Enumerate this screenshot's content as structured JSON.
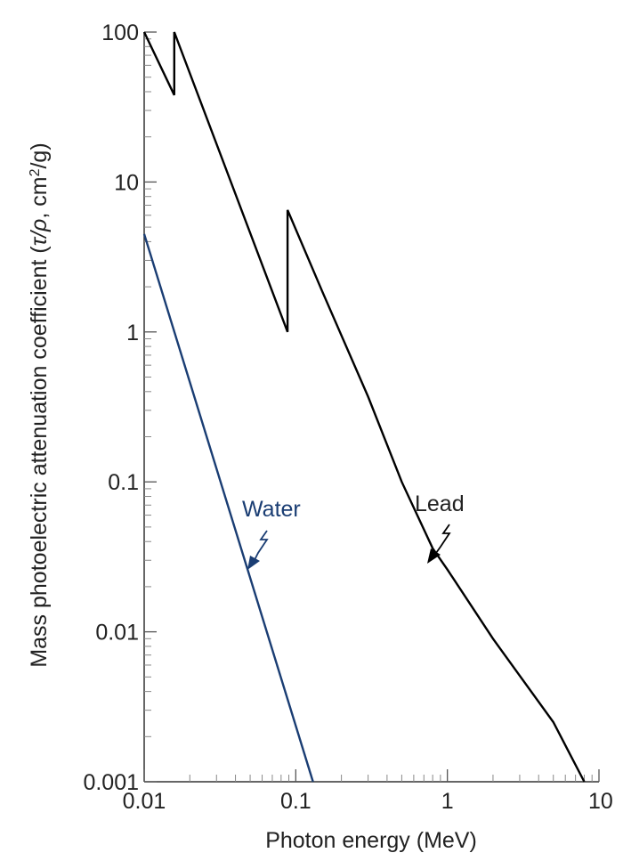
{
  "chart_data": {
    "type": "line",
    "xlabel": "Photon energy (MeV)",
    "ylabel_prefix": "Mass photoelectric attenuation coefficient (",
    "ylabel_symbol": "τ/ρ",
    "ylabel_unit_pre": ", cm",
    "ylabel_unit_sup": "2",
    "ylabel_unit_post": "/g)",
    "x_scale": "log",
    "y_scale": "log",
    "xlim": [
      0.01,
      10
    ],
    "ylim": [
      0.001,
      100
    ],
    "x_ticks": [
      "0.01",
      "0.1",
      "1",
      "10"
    ],
    "y_ticks": [
      "0.001",
      "0.01",
      "0.1",
      "1",
      "10",
      "100"
    ],
    "grid": false,
    "series": [
      {
        "name": "Lead",
        "color": "#000000",
        "x": [
          0.01,
          0.0158,
          0.0158,
          0.0883,
          0.0883,
          0.15,
          0.3,
          0.5,
          0.8,
          1.0,
          2.0,
          3.0,
          5.0,
          8.0
        ],
        "y": [
          100,
          38,
          100,
          1.0,
          6.5,
          1.85,
          0.37,
          0.1,
          0.036,
          0.026,
          0.009,
          0.0051,
          0.0025,
          0.001
        ]
      },
      {
        "name": "Water",
        "color": "#1a3d73",
        "x": [
          0.01,
          0.13
        ],
        "y": [
          4.5,
          0.001
        ]
      }
    ]
  },
  "annotations": {
    "lead_label": "Lead",
    "water_label": "Water"
  }
}
